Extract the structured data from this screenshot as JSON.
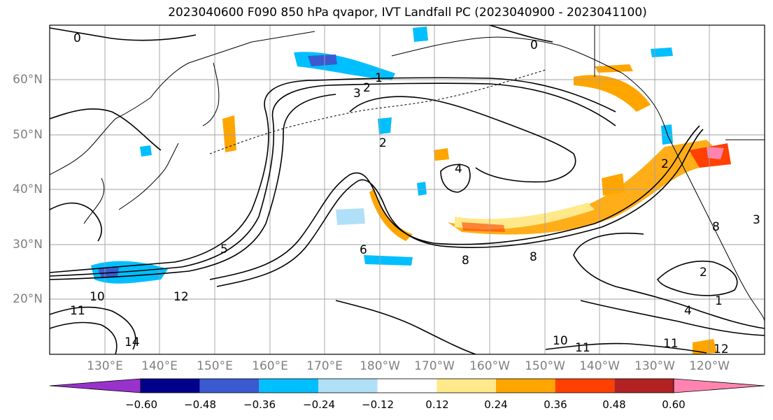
{
  "title": "2023040600 F090 850 hPa qvapor, IVT Landfall PC (2023040900 - 2023041100)",
  "lat_labels": [
    "60°N",
    "50°N",
    "40°N",
    "30°N",
    "20°N"
  ],
  "lon_labels": [
    "130°E",
    "140°E",
    "150°E",
    "160°E",
    "170°E",
    "180°W",
    "170°W",
    "160°W",
    "150°W",
    "140°W",
    "130°W",
    "120°W"
  ],
  "colorbar": {
    "tick_labels": [
      "−0.60",
      "−0.48",
      "−0.36",
      "−0.24",
      "−0.12",
      "0.12",
      "0.24",
      "0.36",
      "0.48",
      "0.60"
    ],
    "bins": [
      {
        "range": "< -0.60",
        "color": "#9932cc"
      },
      {
        "range": "-0.60 to -0.48",
        "color": "#00008b"
      },
      {
        "range": "-0.48 to -0.36",
        "color": "#3a5bd0"
      },
      {
        "range": "-0.36 to -0.24",
        "color": "#00bfff"
      },
      {
        "range": "-0.24 to -0.12",
        "color": "#b0e0f8"
      },
      {
        "range": "-0.12 to 0.12",
        "color": "#ffffff"
      },
      {
        "range": "0.12 to 0.24",
        "color": "#ffe98a"
      },
      {
        "range": "0.24 to 0.36",
        "color": "#ffa500"
      },
      {
        "range": "0.36 to 0.48",
        "color": "#ff4000"
      },
      {
        "range": "0.48 to 0.60",
        "color": "#b22222"
      },
      {
        "range": "> 0.60",
        "color": "#ff85b0"
      }
    ]
  },
  "contour_labels": [
    "0",
    "0",
    "1",
    "2",
    "3",
    "2",
    "2",
    "4",
    "5",
    "6",
    "8",
    "8",
    "10",
    "11",
    "12",
    "14",
    "10",
    "11",
    "11",
    "12",
    "2",
    "1",
    "4",
    "8",
    "3"
  ]
}
